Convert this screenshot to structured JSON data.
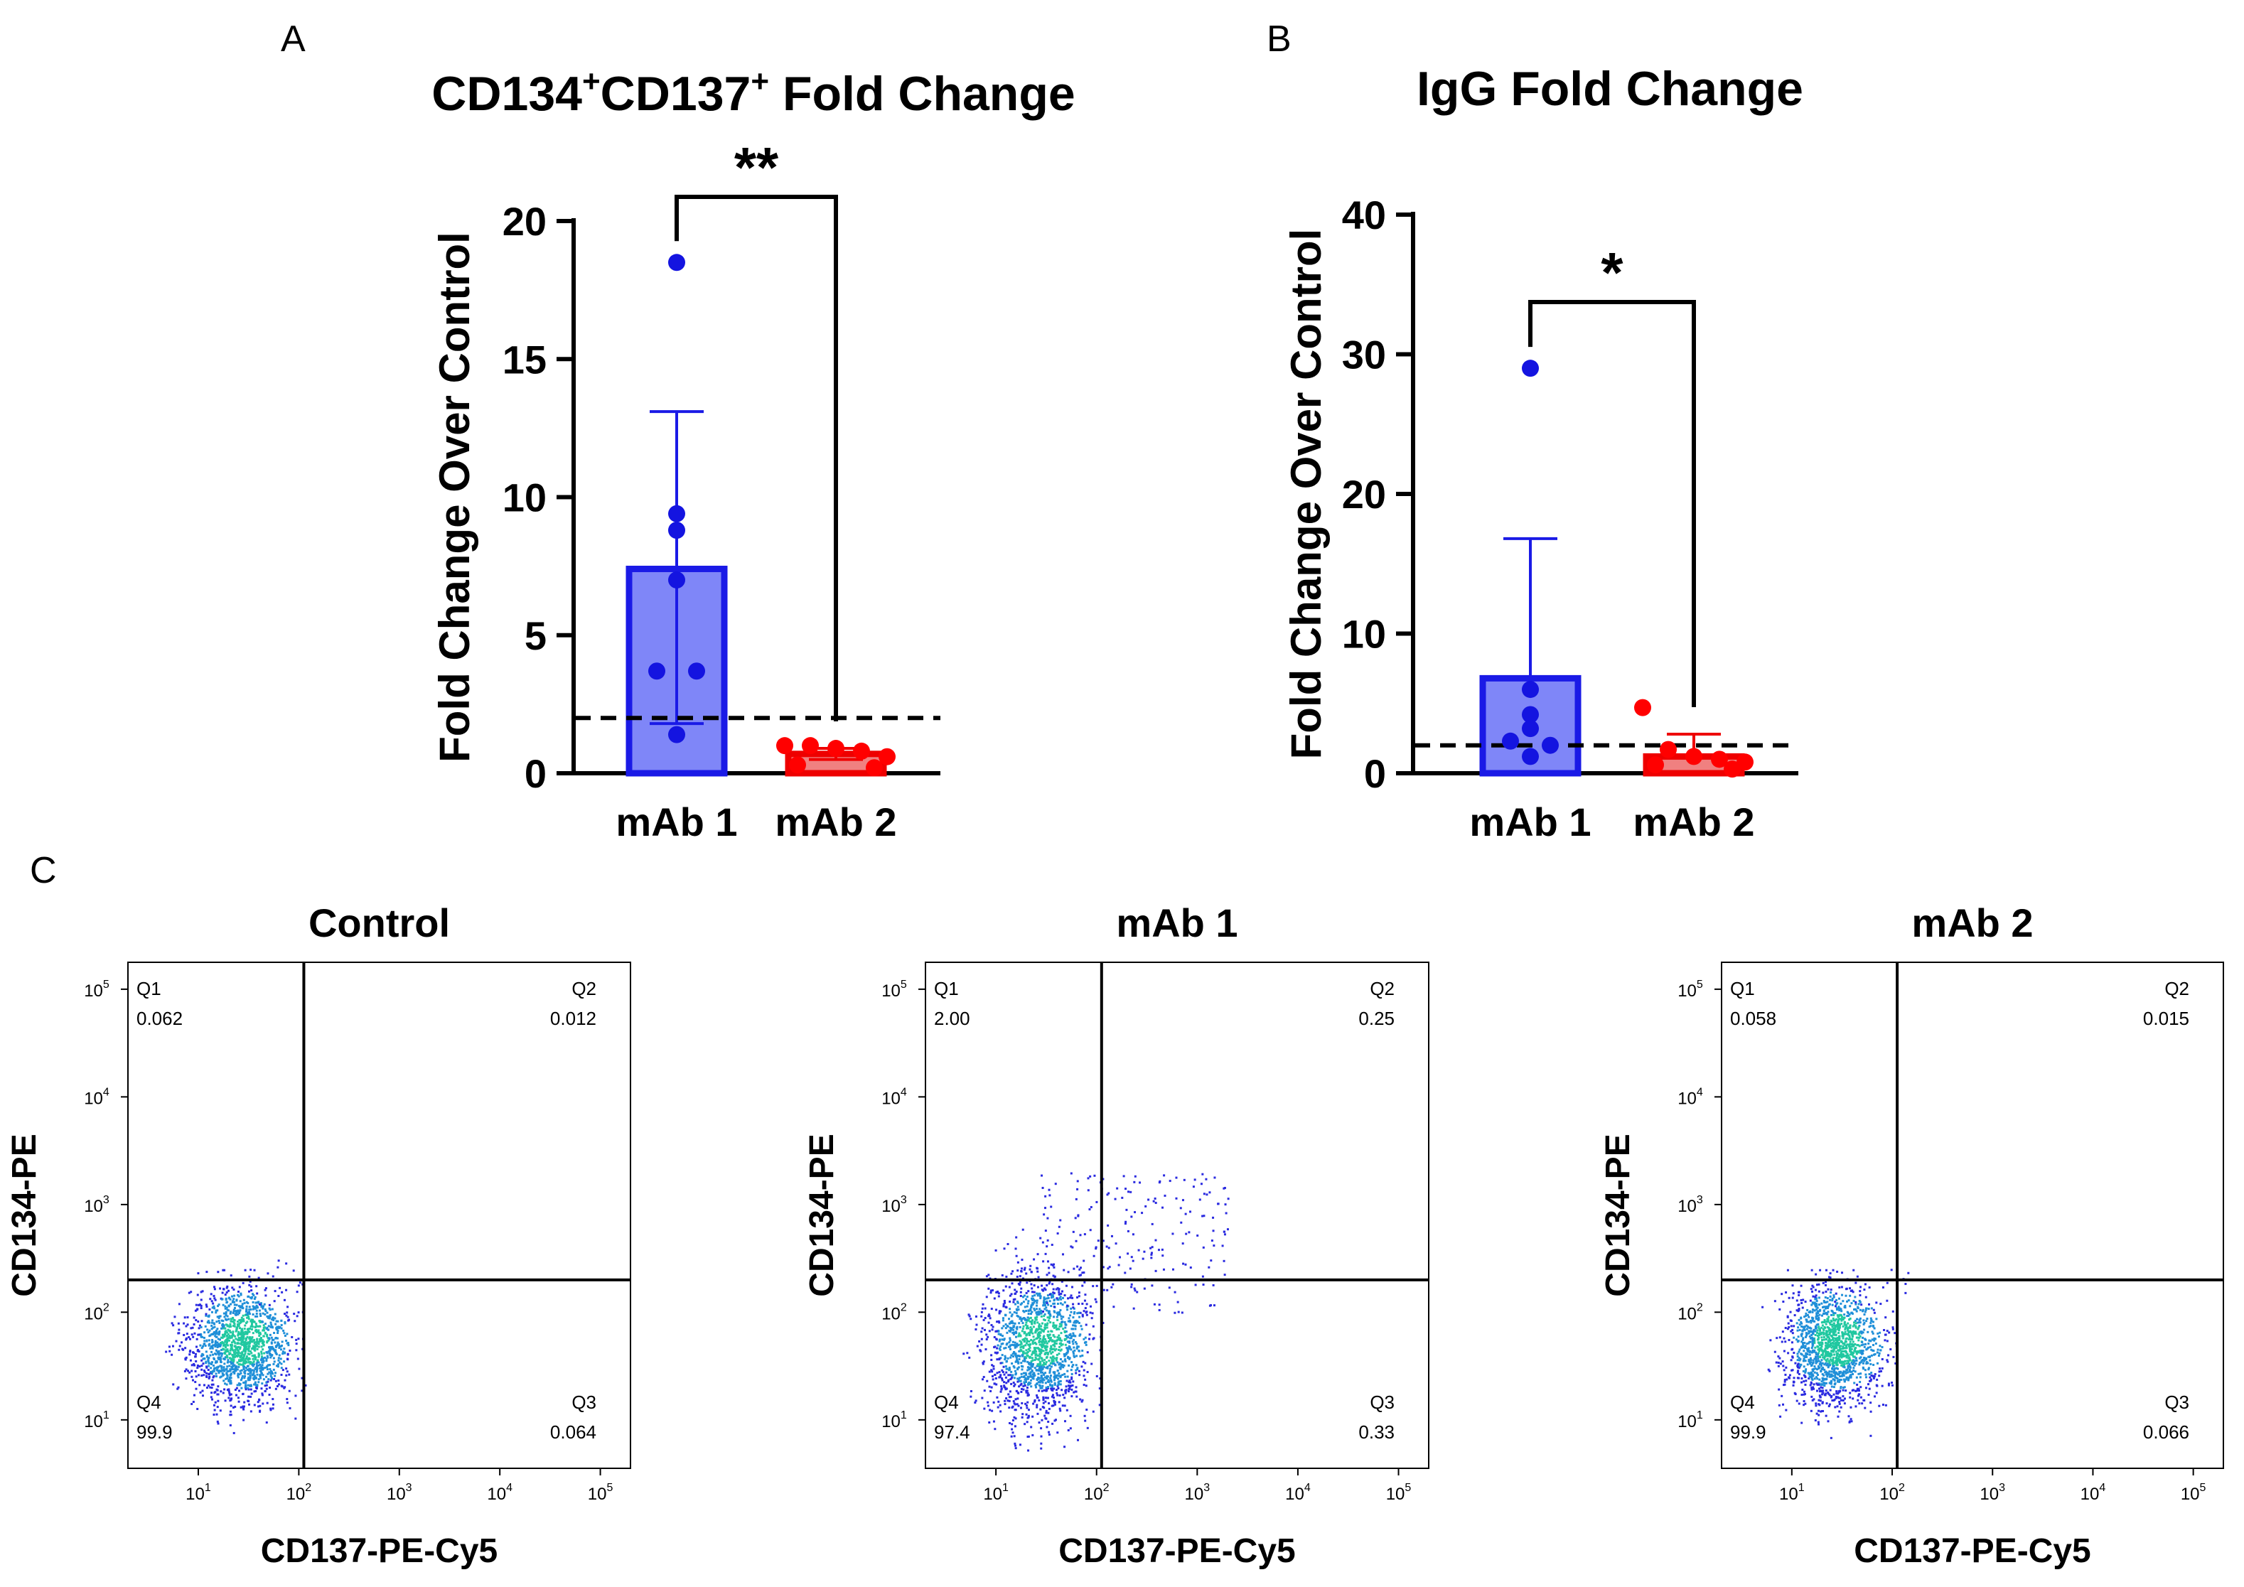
{
  "figure": {
    "panel_labels": [
      "A",
      "B",
      "C"
    ]
  },
  "chart_data": [
    {
      "panel": "A",
      "type": "bar",
      "title_parts": [
        "CD134",
        "+",
        "CD137",
        "+",
        " Fold Change"
      ],
      "xlabel": "",
      "ylabel": "Fold Change Over Control",
      "ylim": [
        0,
        20
      ],
      "yticks": [
        0,
        5,
        10,
        15,
        20
      ],
      "categories": [
        "mAb 1",
        "mAb 2"
      ],
      "values": [
        7.4,
        0.7
      ],
      "error_upper": [
        13.1,
        0.9
      ],
      "error_lower": [
        1.8,
        0.5
      ],
      "points": [
        [
          18.5,
          9.4,
          8.8,
          7.0,
          3.7,
          3.7,
          1.4
        ],
        [
          1.0,
          1.0,
          0.9,
          0.8,
          0.6,
          0.3,
          0.2
        ]
      ],
      "threshold": 2,
      "significance": "**",
      "colors": {
        "bar1_fill": "#7f86f8",
        "bar1_edge": "#1a1ae6",
        "pt1": "#1414e0",
        "bar2_fill": "#f08080",
        "bar2_edge": "#ee0000",
        "pt2": "#ff0000"
      }
    },
    {
      "panel": "B",
      "type": "bar",
      "title_parts": [
        "IgG Fold Change"
      ],
      "xlabel": "",
      "ylabel": "Fold Change Over Control",
      "ylim": [
        0,
        40
      ],
      "yticks": [
        0,
        10,
        20,
        30,
        40
      ],
      "categories": [
        "mAb 1",
        "mAb 2"
      ],
      "values": [
        6.8,
        1.2
      ],
      "error_upper": [
        16.8,
        2.8
      ],
      "error_lower": [
        0,
        0
      ],
      "points": [
        [
          29.0,
          6.0,
          4.2,
          3.2,
          2.3,
          2.0,
          1.2
        ],
        [
          4.7,
          1.7,
          1.2,
          1.0,
          0.8,
          0.6,
          0.3
        ]
      ],
      "threshold": 2,
      "significance": "*",
      "colors": {
        "bar1_fill": "#7f86f8",
        "bar1_edge": "#1a1ae6",
        "pt1": "#1414e0",
        "bar2_fill": "#f08080",
        "bar2_edge": "#ee0000",
        "pt2": "#ff0000"
      }
    },
    {
      "panel": "C",
      "type": "scatter",
      "xlabel": "CD137-PE-Cy5",
      "ylabel": "CD134-PE",
      "x_ticks": [
        {
          "base": "10",
          "exp": "1"
        },
        {
          "base": "10",
          "exp": "2"
        },
        {
          "base": "10",
          "exp": "3"
        },
        {
          "base": "10",
          "exp": "4"
        },
        {
          "base": "10",
          "exp": "5"
        }
      ],
      "y_ticks": [
        {
          "base": "10",
          "exp": "1"
        },
        {
          "base": "10",
          "exp": "2"
        },
        {
          "base": "10",
          "exp": "3"
        },
        {
          "base": "10",
          "exp": "4"
        },
        {
          "base": "10",
          "exp": "5"
        }
      ],
      "xlim_log10": [
        0.3,
        5.3
      ],
      "ylim_log10": [
        0.55,
        5.25
      ],
      "gate_x_log10": 2.05,
      "gate_y_log10": 2.3,
      "plots": [
        {
          "title": "Control",
          "quadrants": {
            "Q1": "0.062",
            "Q2": "0.012",
            "Q3": "0.064",
            "Q4": "99.9"
          }
        },
        {
          "title": "mAb 1",
          "quadrants": {
            "Q1": "2.00",
            "Q2": "0.25",
            "Q3": "0.33",
            "Q4": "97.4"
          }
        },
        {
          "title": "mAb 2",
          "quadrants": {
            "Q1": "0.058",
            "Q2": "0.015",
            "Q3": "0.066",
            "Q4": "99.9"
          }
        }
      ]
    }
  ]
}
